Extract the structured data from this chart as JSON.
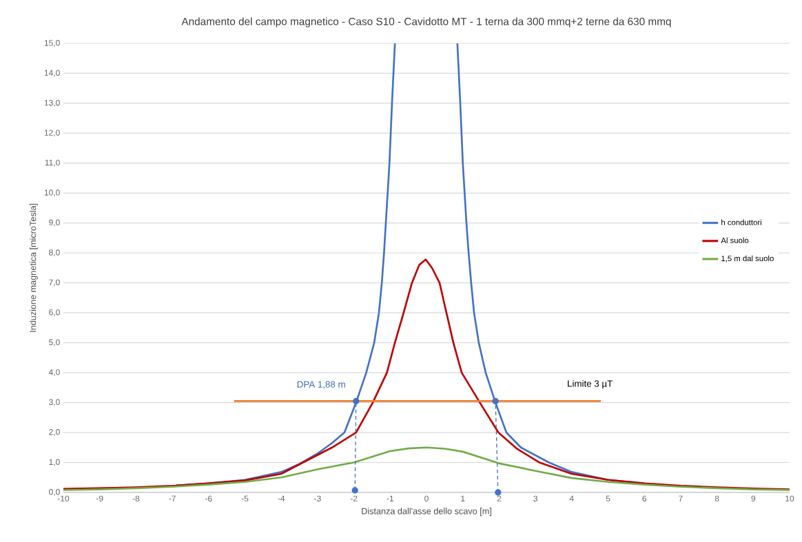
{
  "chart_data": {
    "type": "line",
    "title": "Andamento del  campo magnetico - Caso S10 - Cavidotto MT - 1 terna da 300 mmq+2 terne da 630 mmq",
    "xlabel": "Distanza dall'asse dello scavo [m]",
    "ylabel": "Induzione magnetica [microTesla]",
    "xlim": [
      -10,
      10
    ],
    "ylim": [
      0,
      15
    ],
    "xticks": [
      -10,
      -9,
      -8,
      -7,
      -6,
      -5,
      -4,
      -3,
      -2,
      -1,
      0,
      1,
      2,
      3,
      4,
      5,
      6,
      7,
      8,
      9,
      10
    ],
    "yticks": [
      {
        "value": 0,
        "label": "0,0"
      },
      {
        "value": 1,
        "label": "1,0"
      },
      {
        "value": 2,
        "label": "2,0"
      },
      {
        "value": 3,
        "label": "3,0"
      },
      {
        "value": 4,
        "label": "4,0"
      },
      {
        "value": 5,
        "label": "5,0"
      },
      {
        "value": 6,
        "label": "6,0"
      },
      {
        "value": 7,
        "label": "7,0"
      },
      {
        "value": 8,
        "label": "8,0"
      },
      {
        "value": 9,
        "label": "9,0"
      },
      {
        "value": 10,
        "label": "10,0"
      },
      {
        "value": 11,
        "label": "11,0"
      },
      {
        "value": 12,
        "label": "12,0"
      },
      {
        "value": 13,
        "label": "13,0"
      },
      {
        "value": 14,
        "label": "14,0"
      },
      {
        "value": 15,
        "label": "15,0"
      }
    ],
    "grid": "y",
    "legend": "right",
    "marker": "none",
    "line_style": "solid",
    "series": [
      {
        "name": "h conduttori",
        "color": "#4472c4",
        "x": [
          -7,
          -6,
          -5,
          -4,
          -3.5,
          -3,
          -2.6,
          -2.26,
          -1.94,
          -1.66,
          -1.44,
          -1.31,
          -1.23,
          -1.17,
          -1.12,
          -1.02,
          -0.95,
          -0.87,
          0,
          0.85,
          0.93,
          1.0,
          1.1,
          1.16,
          1.23,
          1.31,
          1.44,
          1.63,
          1.9,
          2.2,
          2.6,
          3.37,
          4,
          5,
          6
        ],
        "values": [
          0.22,
          0.3,
          0.42,
          0.68,
          0.95,
          1.3,
          1.65,
          2,
          3,
          4,
          5,
          6,
          7,
          8,
          9,
          11,
          13,
          15,
          null,
          15,
          13,
          11,
          9,
          8,
          7,
          6,
          5,
          4,
          3,
          2,
          1.5,
          1,
          0.68,
          0.42,
          0.3
        ]
      },
      {
        "name": "Al suolo",
        "color": "#c00000",
        "x": [
          -10,
          -9,
          -8,
          -7,
          -6,
          -5,
          -4,
          -3.4,
          -2.6,
          -1.94,
          -1.48,
          -1.09,
          -0.87,
          -0.63,
          -0.4,
          -0.2,
          -0.02,
          0.15,
          0.36,
          0.55,
          0.74,
          0.97,
          1.47,
          1.98,
          2.5,
          3.11,
          4,
          5,
          6,
          7,
          8,
          9,
          10
        ],
        "values": [
          0.12,
          0.14,
          0.17,
          0.22,
          0.3,
          0.4,
          0.62,
          1,
          1.5,
          2,
          3,
          4,
          5,
          6,
          7,
          7.6,
          7.78,
          7.5,
          7,
          6,
          5,
          4,
          3,
          2,
          1.45,
          1,
          0.62,
          0.42,
          0.3,
          0.22,
          0.17,
          0.13,
          0.1
        ]
      },
      {
        "name": "1,5 m dal suolo",
        "color": "#70ad47",
        "x": [
          -10,
          -9,
          -8,
          -7,
          -6,
          -5,
          -4,
          -3,
          -2,
          -1,
          -0.5,
          0,
          0.5,
          1,
          2,
          3,
          4,
          5,
          6,
          7,
          8,
          9,
          10
        ],
        "values": [
          0.08,
          0.1,
          0.14,
          0.19,
          0.26,
          0.35,
          0.5,
          0.77,
          1.0,
          1.38,
          1.47,
          1.5,
          1.46,
          1.36,
          0.97,
          0.72,
          0.48,
          0.35,
          0.26,
          0.19,
          0.14,
          0.1,
          0.08
        ]
      },
      {
        "color": "#ed7d31",
        "x": [
          -5.3,
          4.8
        ],
        "values": [
          3.05,
          3.05
        ]
      },
      {
        "color": "#4472c4",
        "x": [
          -1.97,
          -1.94
        ],
        "values": [
          0.07,
          3.05
        ],
        "marker": "circle",
        "line_style": "dashed"
      },
      {
        "color": "#4472c4",
        "x": [
          1.97,
          1.9
        ],
        "values": [
          0,
          3.05
        ],
        "marker": "circle",
        "line_style": "dashed"
      }
    ],
    "annotations": [
      {
        "text": "DPA 1,88 m",
        "x": -2.9,
        "y": 3.05
      },
      {
        "text": "Limite 3 µT",
        "x": 4.5,
        "y": 3.05
      }
    ]
  }
}
